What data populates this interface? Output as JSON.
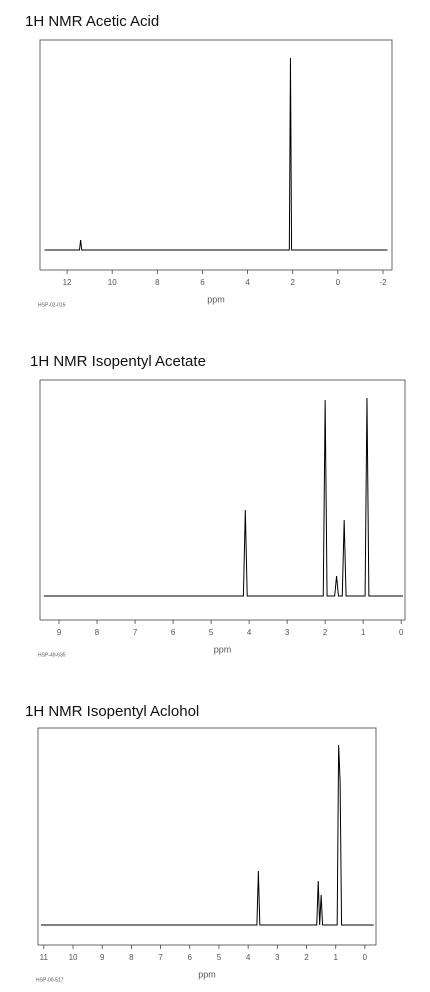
{
  "chart_data": [
    {
      "type": "line",
      "title": "1H NMR Acetic Acid",
      "x_label": "ppm",
      "code": "HSP-02-015",
      "color": "#000000",
      "x": [
        13,
        11.45,
        11.4,
        11.35,
        2.15,
        2.1,
        2.05,
        -2.2
      ],
      "values": [
        0,
        0,
        5,
        0,
        0,
        96,
        0,
        0
      ],
      "xlim": [
        13.2,
        -2.4
      ],
      "ylim": [
        -10,
        105
      ],
      "xticks": [
        12,
        10,
        8,
        6,
        4,
        2,
        0,
        -2
      ]
    },
    {
      "type": "line",
      "title": "1H NMR Isopentyl Acetate",
      "x_label": "ppm",
      "code": "HSP-49-635",
      "color": "#000000",
      "x": [
        9.4,
        4.15,
        4.1,
        4.05,
        2.05,
        2.0,
        1.95,
        1.75,
        1.7,
        1.65,
        1.55,
        1.5,
        1.45,
        0.95,
        0.9,
        0.85,
        -0.05
      ],
      "values": [
        0,
        0,
        43,
        0,
        0,
        98,
        0,
        0,
        10,
        0,
        0,
        38,
        0,
        0,
        99,
        0,
        0
      ],
      "xlim": [
        9.5,
        -0.1
      ],
      "ylim": [
        -12,
        108
      ],
      "xticks": [
        9,
        8,
        7,
        6,
        5,
        4,
        3,
        2,
        1,
        0
      ]
    },
    {
      "type": "line",
      "title": "1H NMR Isopentyl Aclohol",
      "x_label": "ppm",
      "code": "HSP-00-517",
      "color": "#000000",
      "x": [
        11.1,
        3.7,
        3.65,
        3.6,
        1.65,
        1.6,
        1.55,
        1.5,
        1.45,
        0.95,
        0.9,
        0.85,
        0.8,
        -0.3
      ],
      "values": [
        0,
        0,
        27,
        0,
        0,
        22,
        0,
        15,
        0,
        0,
        90,
        72,
        0,
        0
      ],
      "xlim": [
        11.2,
        -0.38
      ],
      "ylim": [
        -10,
        98.5
      ],
      "xticks": [
        11,
        10,
        9,
        8,
        7,
        6,
        5,
        4,
        3,
        2,
        1,
        0
      ]
    }
  ]
}
